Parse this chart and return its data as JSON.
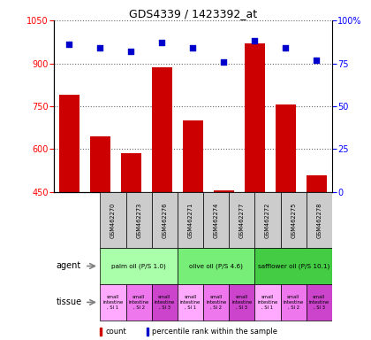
{
  "title": "GDS4339 / 1423392_at",
  "samples": [
    "GSM462270",
    "GSM462273",
    "GSM462276",
    "GSM462271",
    "GSM462274",
    "GSM462277",
    "GSM462272",
    "GSM462275",
    "GSM462278"
  ],
  "counts": [
    790,
    645,
    585,
    885,
    700,
    455,
    970,
    755,
    510
  ],
  "percentiles": [
    86,
    84,
    82,
    87,
    84,
    76,
    88,
    84,
    77
  ],
  "ylim_left": [
    450,
    1050
  ],
  "ylim_right": [
    0,
    100
  ],
  "yticks_left": [
    450,
    600,
    750,
    900,
    1050
  ],
  "yticks_right": [
    0,
    25,
    50,
    75,
    100
  ],
  "ytick_right_labels": [
    "0",
    "25",
    "50",
    "75",
    "100%"
  ],
  "bar_color": "#cc0000",
  "scatter_color": "#0000cc",
  "agent_groups": [
    {
      "label": "palm oil (P/S 1.0)",
      "color": "#aaffaa",
      "span": [
        0,
        3
      ]
    },
    {
      "label": "olive oil (P/S 4.6)",
      "color": "#77ee77",
      "span": [
        3,
        6
      ]
    },
    {
      "label": "safflower oil (P/S 10.1)",
      "color": "#44cc44",
      "span": [
        6,
        9
      ]
    }
  ],
  "tissue_labels": [
    "small\nintestine\n, SI 1",
    "small\nintestine\n, SI 2",
    "small\nintestine\n, SI 3",
    "small\nintestine\n, SI 1",
    "small\nintestine\n, SI 2",
    "small\nintestine\n, SI 3",
    "small\nintestine\n, SI 1",
    "small\nintestine\n, SI 2",
    "small\nintestine\n, SI 3"
  ],
  "tissue_colors": [
    "#ffaaff",
    "#ee77ee",
    "#cc44cc",
    "#ffaaff",
    "#ee77ee",
    "#cc44cc",
    "#ffaaff",
    "#ee77ee",
    "#cc44cc"
  ],
  "sample_box_color": "#cccccc",
  "grid_color": "#666666",
  "legend_red_label": "count",
  "legend_blue_label": "percentile rank within the sample"
}
